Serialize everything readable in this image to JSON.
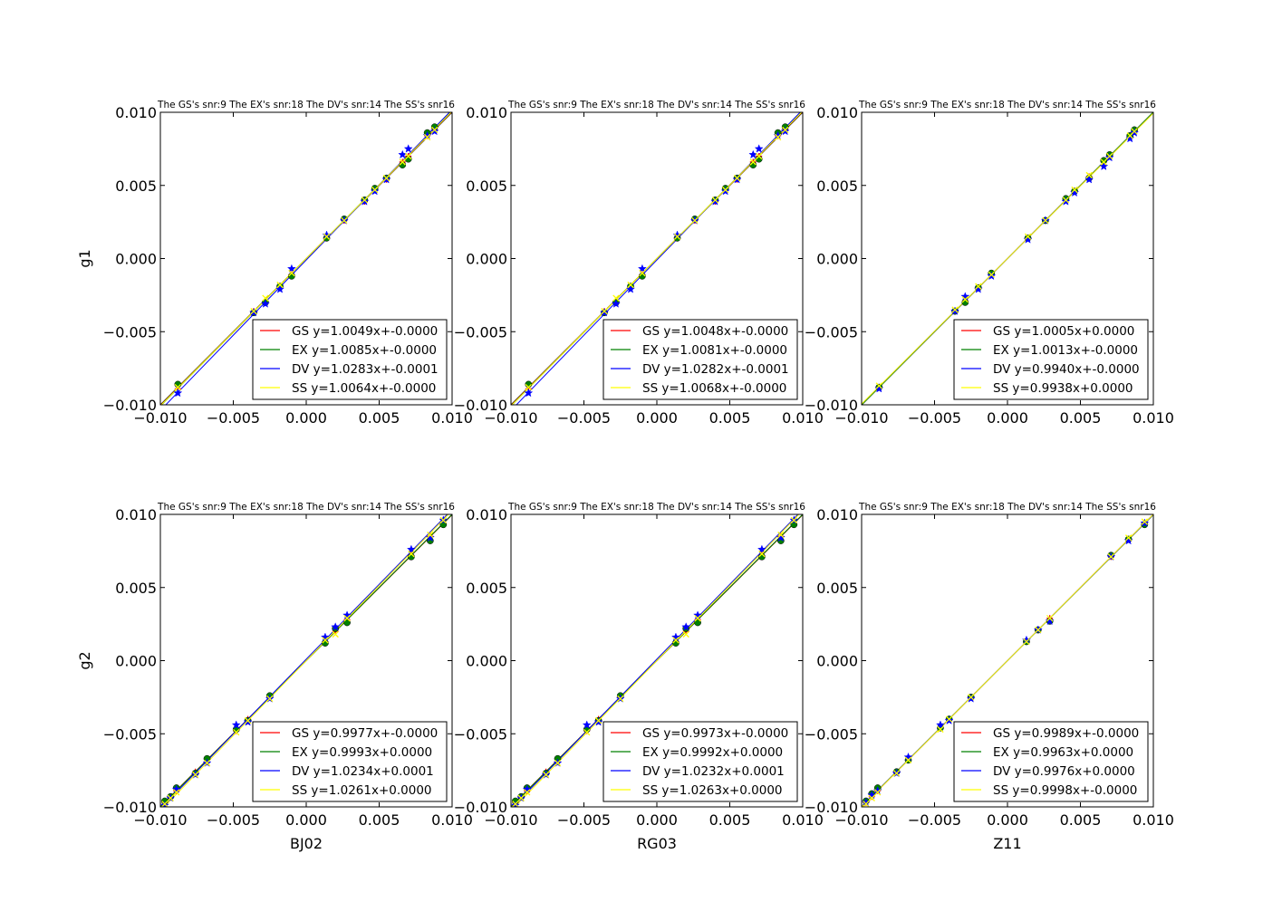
{
  "chart_data": [
    {
      "type": "scatter",
      "title": "The GS's snr:9 The EX's snr:18 The DV's snr:14 The SS's snr16",
      "xlabel": "",
      "ylabel": "g1",
      "xlim": [
        -0.01,
        0.01
      ],
      "ylim": [
        -0.01,
        0.01
      ],
      "xticks": [
        "−0.010",
        "−0.005",
        "0.000",
        "0.005",
        "0.010"
      ],
      "yticks": [
        "−0.010",
        "−0.005",
        "0.000",
        "0.005",
        "0.010"
      ],
      "legend_position": "lower-right",
      "true_values": [
        -0.0088,
        -0.0036,
        -0.0028,
        -0.0018,
        -0.001,
        0.0014,
        0.0026,
        0.004,
        0.0047,
        0.0055,
        0.0066,
        0.007,
        0.0083,
        0.0088
      ],
      "series": [
        {
          "name": "GS",
          "color": "#ff0000",
          "marker": "plus",
          "fit_label": "GS y=1.0049x+-0.0000",
          "slope": 1.0049,
          "intercept": 0.0,
          "values": [
            -0.0089,
            -0.0036,
            -0.0029,
            -0.0019,
            -0.0011,
            0.0014,
            0.0026,
            0.0039,
            0.0047,
            0.0054,
            0.0066,
            0.007,
            0.0084,
            0.0088
          ]
        },
        {
          "name": "EX",
          "color": "#008000",
          "marker": "circle",
          "fit_label": "EX y=1.0085x+-0.0000",
          "slope": 1.0085,
          "intercept": 0.0,
          "values": [
            -0.0086,
            -0.0037,
            -0.003,
            -0.0019,
            -0.0012,
            0.0014,
            0.0027,
            0.004,
            0.0048,
            0.0055,
            0.0064,
            0.0068,
            0.0086,
            0.009
          ]
        },
        {
          "name": "DV",
          "color": "#0000ff",
          "marker": "star",
          "fit_label": "DV y=1.0283x+-0.0001",
          "slope": 1.0283,
          "intercept": -0.0001,
          "values": [
            -0.0092,
            -0.0037,
            -0.0031,
            -0.0021,
            -0.0007,
            0.0016,
            0.0026,
            0.0039,
            0.0046,
            0.0054,
            0.0071,
            0.0075,
            0.0084,
            0.0087
          ]
        },
        {
          "name": "SS",
          "color": "#ffff00",
          "marker": "x",
          "fit_label": "SS y=1.0064x+-0.0000",
          "slope": 1.0064,
          "intercept": 0.0,
          "values": [
            -0.0088,
            -0.0036,
            -0.0027,
            -0.0018,
            -0.001,
            0.0015,
            0.0026,
            0.004,
            0.0047,
            0.0055,
            0.0066,
            0.007,
            0.0083,
            0.0088
          ]
        }
      ]
    },
    {
      "type": "scatter",
      "title": "The GS's snr:9 The EX's snr:18 The DV's snr:14 The SS's snr16",
      "xlabel": "",
      "ylabel": "",
      "xlim": [
        -0.01,
        0.01
      ],
      "ylim": [
        -0.01,
        0.01
      ],
      "xticks": [
        "−0.010",
        "−0.005",
        "0.000",
        "0.005",
        "0.010"
      ],
      "yticks": [
        "−0.010",
        "−0.005",
        "0.000",
        "0.005",
        "0.010"
      ],
      "legend_position": "lower-right",
      "true_values": [
        -0.0088,
        -0.0036,
        -0.0028,
        -0.0018,
        -0.001,
        0.0014,
        0.0026,
        0.004,
        0.0047,
        0.0055,
        0.0066,
        0.007,
        0.0083,
        0.0088
      ],
      "series": [
        {
          "name": "GS",
          "color": "#ff0000",
          "marker": "plus",
          "fit_label": "GS y=1.0048x+-0.0000",
          "slope": 1.0048,
          "intercept": 0.0,
          "values": [
            -0.0089,
            -0.0036,
            -0.0029,
            -0.0019,
            -0.0011,
            0.0014,
            0.0026,
            0.0039,
            0.0047,
            0.0054,
            0.0066,
            0.007,
            0.0084,
            0.0088
          ]
        },
        {
          "name": "EX",
          "color": "#008000",
          "marker": "circle",
          "fit_label": "EX y=1.0081x+-0.0000",
          "slope": 1.0081,
          "intercept": 0.0,
          "values": [
            -0.0086,
            -0.0037,
            -0.003,
            -0.0019,
            -0.0012,
            0.0014,
            0.0027,
            0.004,
            0.0048,
            0.0055,
            0.0064,
            0.0068,
            0.0086,
            0.009
          ]
        },
        {
          "name": "DV",
          "color": "#0000ff",
          "marker": "star",
          "fit_label": "DV y=1.0282x+-0.0001",
          "slope": 1.0282,
          "intercept": -0.0001,
          "values": [
            -0.0092,
            -0.0037,
            -0.0031,
            -0.0021,
            -0.0007,
            0.0016,
            0.0026,
            0.0039,
            0.0046,
            0.0054,
            0.0071,
            0.0075,
            0.0084,
            0.0087
          ]
        },
        {
          "name": "SS",
          "color": "#ffff00",
          "marker": "x",
          "fit_label": "SS y=1.0068x+-0.0000",
          "slope": 1.0068,
          "intercept": 0.0,
          "values": [
            -0.0088,
            -0.0036,
            -0.0027,
            -0.0018,
            -0.001,
            0.0015,
            0.0026,
            0.004,
            0.0047,
            0.0055,
            0.0066,
            0.007,
            0.0083,
            0.0088
          ]
        }
      ]
    },
    {
      "type": "scatter",
      "title": "The GS's snr:9 The EX's snr:18 The DV's snr:14 The SS's snr16",
      "xlabel": "",
      "ylabel": "",
      "xlim": [
        -0.01,
        0.01
      ],
      "ylim": [
        -0.01,
        0.01
      ],
      "xticks": [
        "−0.010",
        "−0.005",
        "0.000",
        "0.005",
        "0.010"
      ],
      "yticks": [
        "−0.010",
        "−0.005",
        "0.000",
        "0.005",
        "0.010"
      ],
      "legend_position": "lower-right",
      "true_values": [
        -0.0088,
        -0.0036,
        -0.0029,
        -0.002,
        -0.0011,
        0.0014,
        0.0026,
        0.004,
        0.0046,
        0.0056,
        0.0066,
        0.007,
        0.0084,
        0.0087
      ],
      "series": [
        {
          "name": "GS",
          "color": "#ff0000",
          "marker": "plus",
          "fit_label": "GS y=1.0005x+0.0000",
          "slope": 1.0005,
          "intercept": 0.0,
          "values": [
            -0.0088,
            -0.0036,
            -0.0029,
            -0.002,
            -0.0011,
            0.0014,
            0.0026,
            0.004,
            0.0046,
            0.0056,
            0.0066,
            0.007,
            0.0084,
            0.0087
          ]
        },
        {
          "name": "EX",
          "color": "#008000",
          "marker": "circle",
          "fit_label": "EX y=1.0013x+-0.0000",
          "slope": 1.0013,
          "intercept": 0.0,
          "values": [
            -0.0088,
            -0.0036,
            -0.003,
            -0.002,
            -0.001,
            0.0014,
            0.0026,
            0.0041,
            0.0046,
            0.0055,
            0.0067,
            0.0071,
            0.0084,
            0.0088
          ]
        },
        {
          "name": "DV",
          "color": "#0000ff",
          "marker": "star",
          "fit_label": "DV y=0.9940x+-0.0000",
          "slope": 0.994,
          "intercept": 0.0,
          "values": [
            -0.0089,
            -0.0036,
            -0.0026,
            -0.0021,
            -0.0012,
            0.0013,
            0.0026,
            0.0039,
            0.0045,
            0.0054,
            0.0063,
            0.0069,
            0.0082,
            0.0086
          ]
        },
        {
          "name": "SS",
          "color": "#ffff00",
          "marker": "x",
          "fit_label": "SS y=0.9938x+0.0000",
          "slope": 0.9938,
          "intercept": 0.0,
          "values": [
            -0.0087,
            -0.0035,
            -0.0028,
            -0.0019,
            -0.0011,
            0.0015,
            0.0026,
            0.004,
            0.0047,
            0.0057,
            0.0066,
            0.007,
            0.0084,
            0.0087
          ]
        }
      ]
    },
    {
      "type": "scatter",
      "title": "The GS's snr:9 The EX's snr:18 The DV's snr:14 The SS's snr16",
      "xlabel": "BJ02",
      "ylabel": "g2",
      "xlim": [
        -0.01,
        0.01
      ],
      "ylim": [
        -0.01,
        0.01
      ],
      "xticks": [
        "−0.010",
        "−0.005",
        "0.000",
        "0.005",
        "0.010"
      ],
      "yticks": [
        "−0.010",
        "−0.005",
        "0.000",
        "0.005",
        "0.010"
      ],
      "legend_position": "lower-right",
      "true_values": [
        -0.0097,
        -0.0093,
        -0.0089,
        -0.0076,
        -0.0068,
        -0.0048,
        -0.004,
        -0.0025,
        0.0013,
        0.002,
        0.0028,
        0.0072,
        0.0085,
        0.0094
      ],
      "series": [
        {
          "name": "GS",
          "color": "#ff0000",
          "marker": "plus",
          "fit_label": "GS y=0.9977x+-0.0000",
          "slope": 0.9977,
          "intercept": 0.0,
          "values": [
            -0.0097,
            -0.0093,
            -0.0089,
            -0.0076,
            -0.0068,
            -0.0048,
            -0.004,
            -0.0025,
            0.0013,
            0.002,
            0.0028,
            0.0072,
            0.0085,
            0.0094
          ]
        },
        {
          "name": "EX",
          "color": "#008000",
          "marker": "circle",
          "fit_label": "EX y=0.9993x+0.0000",
          "slope": 0.9993,
          "intercept": 0.0,
          "values": [
            -0.0096,
            -0.0093,
            -0.0087,
            -0.0077,
            -0.0067,
            -0.0047,
            -0.0041,
            -0.0024,
            0.0012,
            0.0022,
            0.0026,
            0.0071,
            0.0082,
            0.0093
          ]
        },
        {
          "name": "DV",
          "color": "#0000ff",
          "marker": "star",
          "fit_label": "DV y=1.0234x+0.0001",
          "slope": 1.0234,
          "intercept": 0.0001,
          "values": [
            -0.0099,
            -0.0094,
            -0.0088,
            -0.0078,
            -0.007,
            -0.0044,
            -0.0042,
            -0.0026,
            0.0016,
            0.0023,
            0.0031,
            0.0076,
            0.0084,
            0.0096
          ]
        },
        {
          "name": "SS",
          "color": "#ffff00",
          "marker": "x",
          "fit_label": "SS y=1.0261x+0.0000",
          "slope": 1.0261,
          "intercept": 0.0,
          "values": [
            -0.0098,
            -0.0094,
            -0.009,
            -0.0078,
            -0.007,
            -0.0049,
            -0.0041,
            -0.0026,
            0.0014,
            0.0018,
            0.0029,
            0.0073,
            0.0086,
            0.0096
          ]
        }
      ]
    },
    {
      "type": "scatter",
      "title": "The GS's snr:9 The EX's snr:18 The DV's snr:14 The SS's snr16",
      "xlabel": "RG03",
      "ylabel": "",
      "xlim": [
        -0.01,
        0.01
      ],
      "ylim": [
        -0.01,
        0.01
      ],
      "xticks": [
        "−0.010",
        "−0.005",
        "0.000",
        "0.005",
        "0.010"
      ],
      "yticks": [
        "−0.010",
        "−0.005",
        "0.000",
        "0.005",
        "0.010"
      ],
      "legend_position": "lower-right",
      "true_values": [
        -0.0097,
        -0.0093,
        -0.0089,
        -0.0076,
        -0.0068,
        -0.0048,
        -0.004,
        -0.0025,
        0.0013,
        0.002,
        0.0028,
        0.0072,
        0.0085,
        0.0094
      ],
      "series": [
        {
          "name": "GS",
          "color": "#ff0000",
          "marker": "plus",
          "fit_label": "GS y=0.9973x+-0.0000",
          "slope": 0.9973,
          "intercept": 0.0,
          "values": [
            -0.0097,
            -0.0093,
            -0.0089,
            -0.0076,
            -0.0068,
            -0.0048,
            -0.004,
            -0.0025,
            0.0013,
            0.002,
            0.0028,
            0.0072,
            0.0085,
            0.0094
          ]
        },
        {
          "name": "EX",
          "color": "#008000",
          "marker": "circle",
          "fit_label": "EX y=0.9992x+0.0000",
          "slope": 0.9992,
          "intercept": 0.0,
          "values": [
            -0.0096,
            -0.0093,
            -0.0087,
            -0.0077,
            -0.0067,
            -0.0047,
            -0.0041,
            -0.0024,
            0.0012,
            0.0022,
            0.0026,
            0.0071,
            0.0082,
            0.0093
          ]
        },
        {
          "name": "DV",
          "color": "#0000ff",
          "marker": "star",
          "fit_label": "DV y=1.0232x+0.0001",
          "slope": 1.0232,
          "intercept": 0.0001,
          "values": [
            -0.0099,
            -0.0094,
            -0.0088,
            -0.0078,
            -0.007,
            -0.0044,
            -0.0042,
            -0.0026,
            0.0016,
            0.0023,
            0.0031,
            0.0076,
            0.0084,
            0.0096
          ]
        },
        {
          "name": "SS",
          "color": "#ffff00",
          "marker": "x",
          "fit_label": "SS y=1.0263x+0.0000",
          "slope": 1.0263,
          "intercept": 0.0,
          "values": [
            -0.0098,
            -0.0094,
            -0.009,
            -0.0078,
            -0.007,
            -0.0049,
            -0.0041,
            -0.0026,
            0.0014,
            0.0018,
            0.0029,
            0.0073,
            0.0086,
            0.0096
          ]
        }
      ]
    },
    {
      "type": "scatter",
      "title": "The GS's snr:9 The EX's snr:18 The DV's snr:14 The SS's snr16",
      "xlabel": "Z11",
      "ylabel": "",
      "xlim": [
        -0.01,
        0.01
      ],
      "ylim": [
        -0.01,
        0.01
      ],
      "xticks": [
        "−0.010",
        "−0.005",
        "0.000",
        "0.005",
        "0.010"
      ],
      "yticks": [
        "−0.010",
        "−0.005",
        "0.000",
        "0.005",
        "0.010"
      ],
      "legend_position": "lower-right",
      "true_values": [
        -0.0097,
        -0.0093,
        -0.0089,
        -0.0076,
        -0.0068,
        -0.0046,
        -0.004,
        -0.0025,
        0.0013,
        0.0021,
        0.0029,
        0.0071,
        0.0083,
        0.0094
      ],
      "series": [
        {
          "name": "GS",
          "color": "#ff0000",
          "marker": "plus",
          "fit_label": "GS y=0.9989x+-0.0000",
          "slope": 0.9989,
          "intercept": 0.0,
          "values": [
            -0.0097,
            -0.0093,
            -0.0089,
            -0.0076,
            -0.0068,
            -0.0046,
            -0.004,
            -0.0025,
            0.0013,
            0.0021,
            0.0029,
            0.0071,
            0.0083,
            0.0094
          ]
        },
        {
          "name": "EX",
          "color": "#008000",
          "marker": "circle",
          "fit_label": "EX y=0.9963x+0.0000",
          "slope": 0.9963,
          "intercept": 0.0,
          "values": [
            -0.0096,
            -0.0091,
            -0.0087,
            -0.0076,
            -0.0068,
            -0.0046,
            -0.004,
            -0.0025,
            0.0013,
            0.0021,
            0.0027,
            0.0072,
            0.0083,
            0.0093
          ]
        },
        {
          "name": "DV",
          "color": "#0000ff",
          "marker": "star",
          "fit_label": "DV y=0.9976x+0.0000",
          "slope": 0.9976,
          "intercept": 0.0,
          "values": [
            -0.0097,
            -0.0092,
            -0.0089,
            -0.0077,
            -0.0066,
            -0.0044,
            -0.0041,
            -0.0026,
            0.0014,
            0.0021,
            0.0027,
            0.0071,
            0.0082,
            0.0094
          ]
        },
        {
          "name": "SS",
          "color": "#ffff00",
          "marker": "x",
          "fit_label": "SS y=0.9998x+-0.0000",
          "slope": 0.9998,
          "intercept": 0.0,
          "values": [
            -0.0098,
            -0.0094,
            -0.009,
            -0.0077,
            -0.0068,
            -0.0047,
            -0.004,
            -0.0025,
            0.0013,
            0.0021,
            0.0029,
            0.0071,
            0.0084,
            0.0095
          ]
        }
      ]
    }
  ]
}
